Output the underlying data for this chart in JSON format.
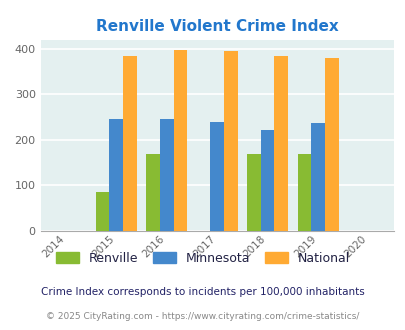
{
  "title": "Renville Violent Crime Index",
  "years": [
    2015,
    2016,
    2017,
    2018,
    2019
  ],
  "renville": [
    85,
    168,
    0,
    170,
    170
  ],
  "minnesota": [
    245,
    245,
    240,
    221,
    237
  ],
  "national": [
    385,
    398,
    394,
    383,
    380
  ],
  "renville_color": "#88bb33",
  "minnesota_color": "#4488cc",
  "national_color": "#ffaa33",
  "title_color": "#2277cc",
  "bg_color": "#e4f0f0",
  "xlim": [
    2013.5,
    2020.5
  ],
  "ylim": [
    0,
    420
  ],
  "yticks": [
    0,
    100,
    200,
    300,
    400
  ],
  "bar_width": 0.27,
  "legend_labels": [
    "Renville",
    "Minnesota",
    "National"
  ],
  "legend_text_color": "#222244",
  "footnote1": "Crime Index corresponds to incidents per 100,000 inhabitants",
  "footnote2": "© 2025 CityRating.com - https://www.cityrating.com/crime-statistics/",
  "footnote1_color": "#222266",
  "footnote2_color": "#888888"
}
